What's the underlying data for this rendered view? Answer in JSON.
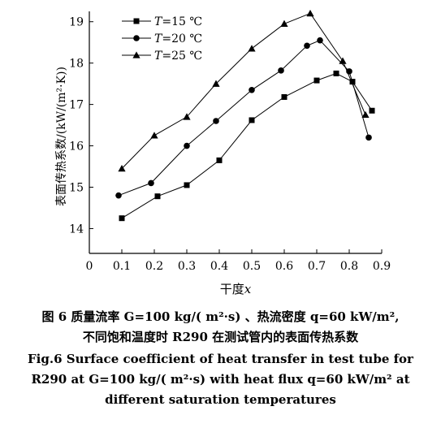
{
  "chart_data": {
    "type": "line",
    "xlabel_prefix": "干度",
    "xlabel_var": "x",
    "ylabel": "表面传热系数/(kW/(m²·K))",
    "xlim": [
      0,
      0.9
    ],
    "ylim": [
      13.4,
      19.25
    ],
    "x_ticks": [
      "0",
      "0.1",
      "0.2",
      "0.3",
      "0.4",
      "0.5",
      "0.6",
      "0.7",
      "0.8",
      "0.9"
    ],
    "y_ticks": [
      "14",
      "15",
      "16",
      "17",
      "18",
      "19"
    ],
    "grid": false,
    "legend_position": "top-left",
    "series": [
      {
        "name": "=15 ℃",
        "name_var": "T",
        "marker": "square",
        "x": [
          0.1,
          0.21,
          0.3,
          0.4,
          0.5,
          0.6,
          0.7,
          0.76,
          0.81,
          0.87
        ],
        "y": [
          14.25,
          14.78,
          15.05,
          15.65,
          16.62,
          17.18,
          17.58,
          17.75,
          17.55,
          16.85
        ]
      },
      {
        "name": "=20 ℃",
        "name_var": "T",
        "marker": "circle",
        "x": [
          0.09,
          0.19,
          0.3,
          0.39,
          0.5,
          0.59,
          0.67,
          0.71,
          0.8,
          0.86
        ],
        "y": [
          14.8,
          15.1,
          16.0,
          16.6,
          17.35,
          17.82,
          18.42,
          18.55,
          17.8,
          16.2
        ]
      },
      {
        "name": "=25 ℃",
        "name_var": "T",
        "marker": "triangle",
        "x": [
          0.1,
          0.2,
          0.3,
          0.39,
          0.5,
          0.6,
          0.68,
          0.78,
          0.85
        ],
        "y": [
          15.45,
          16.25,
          16.7,
          17.5,
          18.35,
          18.95,
          19.2,
          18.05,
          16.75
        ]
      }
    ]
  },
  "caption": {
    "cn_line1": "图 6 质量流率 G=100 kg/( m²·s) 、热流密度 q=60 kW/m²,",
    "cn_line2": "不同饱和温度时 R290 在测试管内的表面传热系数",
    "en_line1": "Fig.6 Surface coefficient of heat transfer in test tube for",
    "en_line2": "R290 at G=100 kg/( m²·s) with heat flux q=60 kW/m² at",
    "en_line3": "different saturation temperatures"
  }
}
